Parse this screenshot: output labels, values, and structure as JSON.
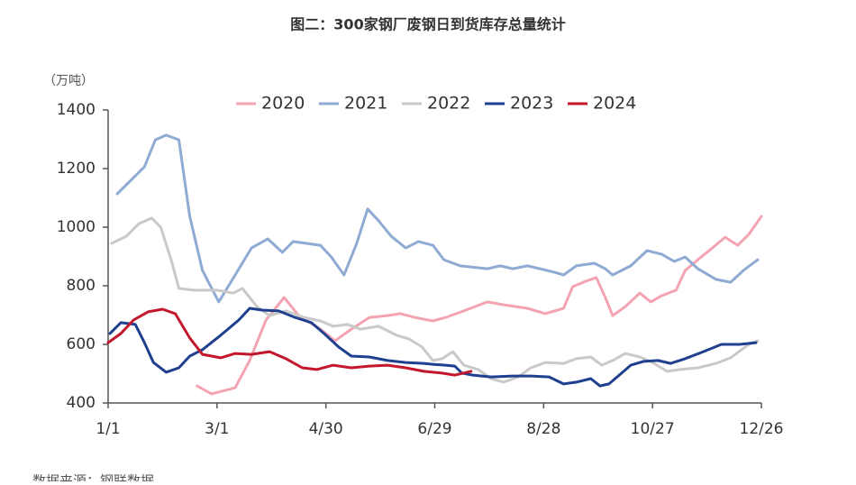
{
  "chart_data": {
    "type": "line",
    "title": "图二：300家钢厂废钢日到货库存总量统计",
    "y_axis_label": "（万吨）",
    "source": "数据来源：钢联数据",
    "xlim": [
      0,
      360
    ],
    "xticks": [
      {
        "value": 0,
        "label": "1/1"
      },
      {
        "value": 60,
        "label": "3/1"
      },
      {
        "value": 120,
        "label": "4/30"
      },
      {
        "value": 180,
        "label": "6/29"
      },
      {
        "value": 240,
        "label": "8/28"
      },
      {
        "value": 300,
        "label": "10/27"
      },
      {
        "value": 360,
        "label": "12/26"
      }
    ],
    "ylim": [
      400,
      1400
    ],
    "yticks": [
      400,
      600,
      800,
      1000,
      1200,
      1400
    ],
    "legend": "top",
    "series": [
      {
        "name": "2020",
        "color": "#f4a3b1",
        "x": [
          49,
          57,
          70,
          78,
          87,
          97,
          105,
          117,
          125,
          134,
          144,
          154,
          161,
          169,
          179,
          186,
          196,
          209,
          218,
          231,
          241,
          251,
          256,
          263,
          269,
          274,
          278,
          285,
          293,
          299,
          305,
          313,
          318,
          325,
          333,
          340,
          347,
          353,
          360
        ],
        "values": [
          458,
          431,
          452,
          545,
          683,
          760,
          698,
          652,
          612,
          652,
          692,
          698,
          705,
          692,
          680,
          692,
          714,
          745,
          735,
          723,
          705,
          723,
          797,
          815,
          828,
          760,
          698,
          729,
          775,
          745,
          766,
          785,
          852,
          889,
          929,
          966,
          938,
          975,
          1037
        ]
      },
      {
        "name": "2021",
        "color": "#8faad3",
        "x": [
          5,
          20,
          26,
          32,
          39,
          45,
          52,
          61,
          70,
          79,
          88,
          96,
          102,
          109,
          117,
          123,
          130,
          137,
          143,
          149,
          156,
          164,
          171,
          179,
          185,
          194,
          209,
          216,
          223,
          231,
          238,
          246,
          251,
          258,
          268,
          274,
          278,
          288,
          297,
          305,
          312,
          318,
          325,
          335,
          343,
          350,
          358
        ],
        "values": [
          1114,
          1206,
          1298,
          1314,
          1298,
          1037,
          852,
          745,
          837,
          929,
          960,
          914,
          951,
          945,
          938,
          898,
          837,
          945,
          1062,
          1022,
          969,
          929,
          951,
          938,
          889,
          868,
          858,
          868,
          858,
          868,
          858,
          846,
          837,
          868,
          877,
          858,
          837,
          868,
          920,
          908,
          883,
          898,
          858,
          822,
          812,
          852,
          889
        ]
      },
      {
        "name": "2022",
        "color": "#c9c9c9",
        "x": [
          2,
          10,
          17,
          24,
          29,
          35,
          39,
          47,
          60,
          69,
          74,
          82,
          89,
          98,
          108,
          117,
          124,
          132,
          139,
          149,
          159,
          166,
          173,
          179,
          184,
          190,
          196,
          204,
          211,
          218,
          226,
          233,
          241,
          251,
          258,
          266,
          272,
          278,
          285,
          293,
          300,
          308,
          315,
          325,
          335,
          343,
          353,
          358
        ],
        "values": [
          945,
          969,
          1012,
          1031,
          1000,
          883,
          791,
          785,
          785,
          775,
          791,
          729,
          698,
          714,
          692,
          680,
          662,
          668,
          652,
          662,
          631,
          618,
          591,
          545,
          551,
          575,
          529,
          514,
          483,
          471,
          489,
          520,
          538,
          535,
          551,
          557,
          529,
          545,
          569,
          557,
          538,
          508,
          514,
          520,
          535,
          554,
          600,
          612
        ]
      },
      {
        "name": "2023",
        "color": "#1f3f8f",
        "x": [
          1,
          7,
          15,
          20,
          25,
          32,
          39,
          45,
          52,
          62,
          72,
          78,
          85,
          94,
          103,
          112,
          119,
          127,
          134,
          144,
          154,
          164,
          174,
          179,
          186,
          191,
          195,
          201,
          211,
          223,
          233,
          243,
          251,
          258,
          266,
          271,
          276,
          283,
          288,
          295,
          303,
          310,
          318,
          328,
          338,
          348,
          357
        ],
        "values": [
          637,
          674,
          668,
          606,
          538,
          505,
          520,
          560,
          582,
          631,
          683,
          723,
          717,
          714,
          692,
          674,
          637,
          591,
          560,
          557,
          545,
          538,
          535,
          532,
          529,
          526,
          502,
          495,
          489,
          492,
          492,
          489,
          465,
          471,
          483,
          458,
          465,
          502,
          529,
          542,
          545,
          535,
          551,
          575,
          600,
          600,
          606
        ]
      },
      {
        "name": "2024",
        "color": "#c3172b",
        "x": [
          0,
          7,
          14,
          22,
          30,
          37,
          45,
          52,
          62,
          70,
          79,
          89,
          98,
          107,
          115,
          124,
          134,
          144,
          154,
          164,
          174,
          184,
          191,
          200
        ],
        "values": [
          606,
          637,
          683,
          711,
          720,
          705,
          622,
          566,
          554,
          569,
          566,
          575,
          551,
          520,
          514,
          529,
          520,
          526,
          529,
          520,
          508,
          502,
          495,
          508
        ]
      }
    ]
  }
}
